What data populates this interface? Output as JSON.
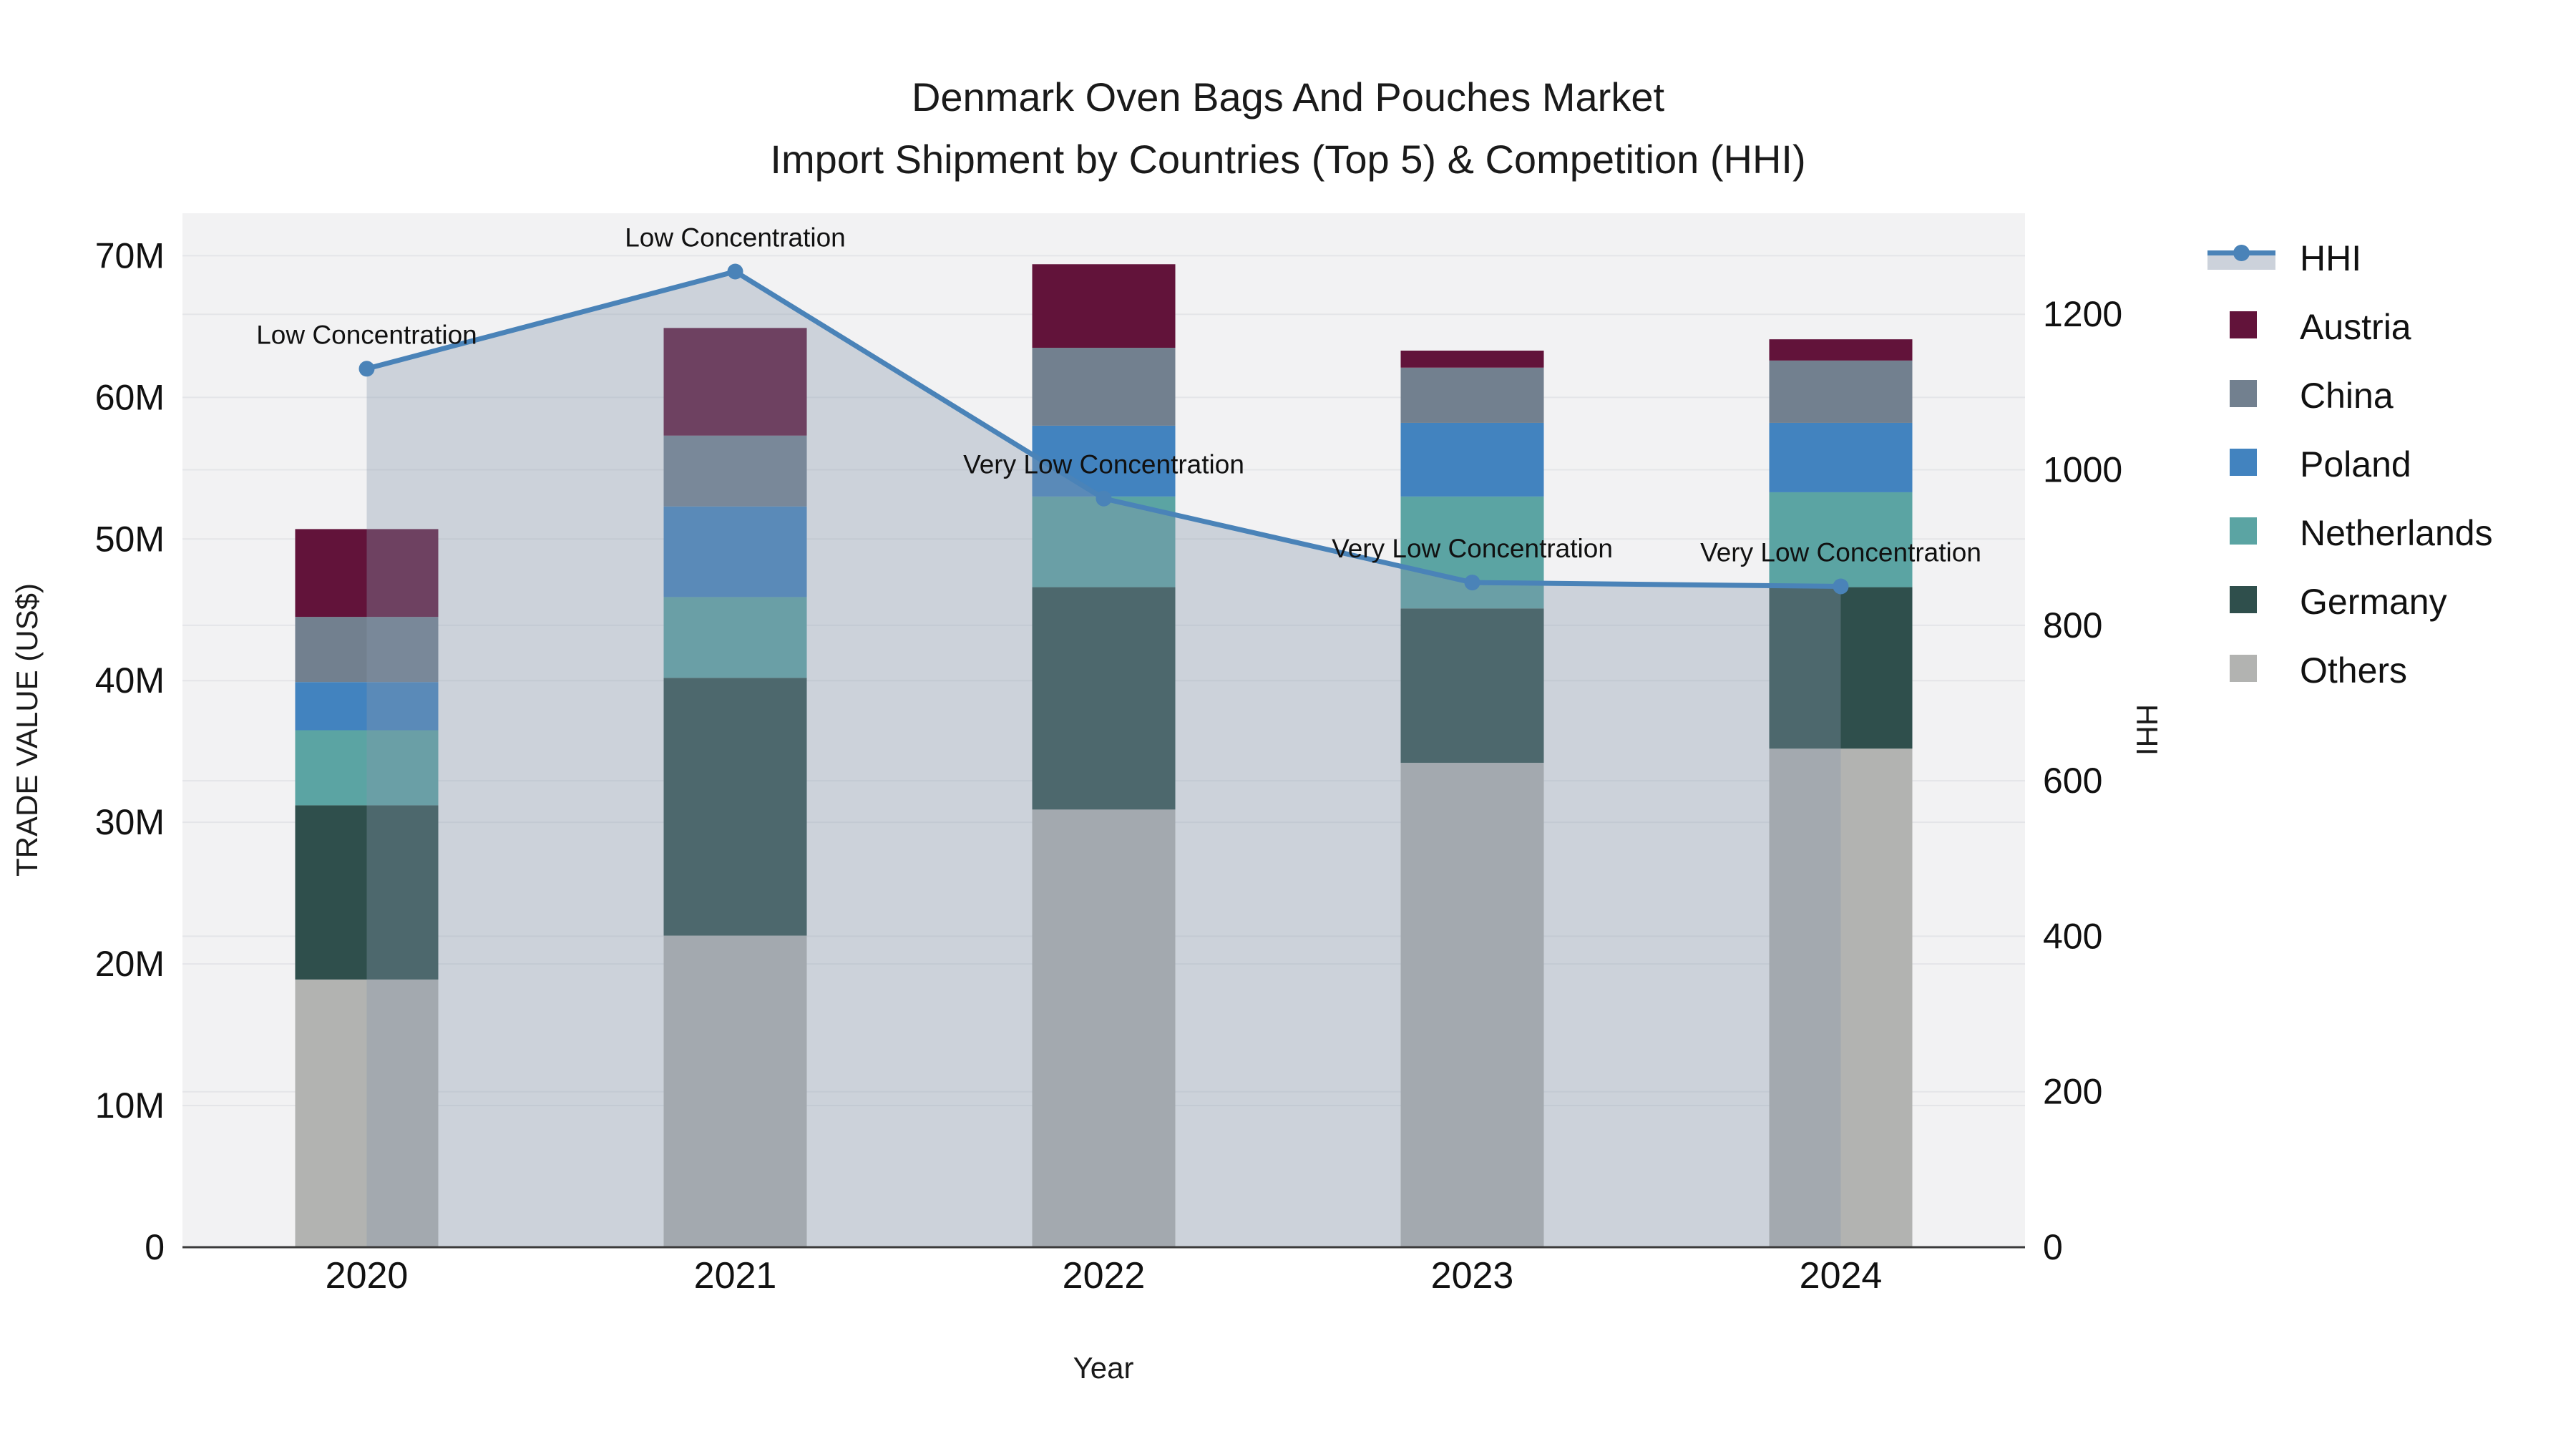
{
  "title": {
    "line1": "Denmark Oven Bags And Pouches Market",
    "line2": "Import Shipment by Countries (Top 5) & Competition (HHI)"
  },
  "axes": {
    "x_label": "Year",
    "y_left_label": "TRADE VALUE (US$)",
    "y_right_label": "HHI",
    "y_left_ticks": [
      {
        "label": "0",
        "value": 0
      },
      {
        "label": "10M",
        "value": 10
      },
      {
        "label": "20M",
        "value": 20
      },
      {
        "label": "30M",
        "value": 30
      },
      {
        "label": "40M",
        "value": 40
      },
      {
        "label": "50M",
        "value": 50
      },
      {
        "label": "60M",
        "value": 60
      },
      {
        "label": "70M",
        "value": 70
      }
    ],
    "y_right_ticks": [
      {
        "label": "0",
        "value": 0
      },
      {
        "label": "200",
        "value": 200
      },
      {
        "label": "400",
        "value": 400
      },
      {
        "label": "600",
        "value": 600
      },
      {
        "label": "800",
        "value": 800
      },
      {
        "label": "1000",
        "value": 1000
      },
      {
        "label": "1200",
        "value": 1200
      }
    ]
  },
  "legend": {
    "items": [
      {
        "label": "HHI",
        "type": "line"
      },
      {
        "label": "Austria",
        "type": "swatch"
      },
      {
        "label": "China",
        "type": "swatch"
      },
      {
        "label": "Poland",
        "type": "swatch"
      },
      {
        "label": "Netherlands",
        "type": "swatch"
      },
      {
        "label": "Germany",
        "type": "swatch"
      },
      {
        "label": "Others",
        "type": "swatch"
      }
    ]
  },
  "colors": {
    "HHI": "#4a83b8",
    "hhi_legend_fill": "#ccd2db",
    "fill_overlay": "rgba(136,151,172,0.35)",
    "Austria": "#62133a",
    "China": "#72808f",
    "Poland": "#4283bf",
    "Netherlands": "#5ba4a3",
    "Germany": "#2f4f4c",
    "Others": "#b2b3b1",
    "plot_bg": "#f2f2f3",
    "grid": "#e4e5e8",
    "axis_line": "#3b3b3b",
    "text": "#111111"
  },
  "chart_data": {
    "type": "bar",
    "subtype": "stacked-bars-with-line-overlay",
    "categories": [
      "2020",
      "2021",
      "2022",
      "2023",
      "2024"
    ],
    "value_unit": "US$ millions",
    "stacked_series_bottom_to_top": [
      {
        "name": "Others",
        "values": [
          18.9,
          22.0,
          30.9,
          34.2,
          35.2
        ]
      },
      {
        "name": "Germany",
        "values": [
          12.3,
          18.2,
          15.7,
          10.9,
          11.4
        ]
      },
      {
        "name": "Netherlands",
        "values": [
          5.3,
          5.7,
          6.4,
          7.9,
          6.7
        ]
      },
      {
        "name": "Poland",
        "values": [
          3.4,
          6.4,
          5.0,
          5.2,
          4.9
        ]
      },
      {
        "name": "China",
        "values": [
          4.6,
          5.0,
          5.5,
          3.9,
          4.4
        ]
      },
      {
        "name": "Austria",
        "values": [
          6.2,
          7.6,
          5.9,
          1.2,
          1.5
        ]
      }
    ],
    "bar_totals": [
      50.7,
      64.9,
      69.4,
      63.3,
      64.1
    ],
    "line_series": {
      "name": "HHI",
      "axis": "right",
      "values": [
        1130,
        1255,
        963,
        855,
        850
      ],
      "area_fill": true
    },
    "annotations": [
      "Low Concentration",
      "Low Concentration",
      "Very Low Concentration",
      "Very Low Concentration",
      "Very Low Concentration"
    ],
    "y_left": {
      "min": 0,
      "max": 73,
      "gridlines": true
    },
    "y_right": {
      "min": 0,
      "max": 1330,
      "gridlines": true
    },
    "legend_position": "right"
  }
}
